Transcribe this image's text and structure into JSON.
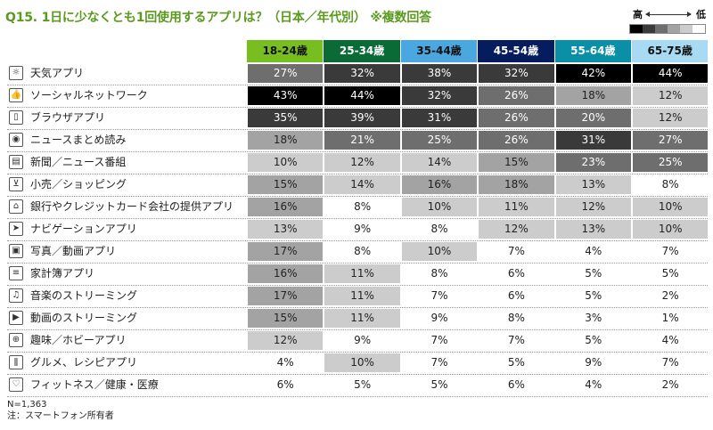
{
  "title": "Q15. 1日に少なくとも1回使用するアプリは？（日本／年代別） ※複数回答",
  "legend": {
    "high_label": "高",
    "low_label": "低",
    "scale_colors": [
      "#000000",
      "#3a3a3a",
      "#6e6e6e",
      "#a3a3a3",
      "#cccccc",
      "#ffffff"
    ]
  },
  "footnote": {
    "n": "N=1,363",
    "note": "注：スマートフォン所有者"
  },
  "chart_data": {
    "type": "table",
    "title": "Q15. 1日に少なくとも1回使用するアプリは？（日本／年代別） ※複数回答",
    "columns": [
      {
        "label": "18-24歳",
        "color": "#78be20"
      },
      {
        "label": "25-34歳",
        "color": "#0b6b36"
      },
      {
        "label": "35-44歳",
        "color": "#4aa7df"
      },
      {
        "label": "45-54歳",
        "color": "#051c5e"
      },
      {
        "label": "55-64歳",
        "color": "#0a8fa6"
      },
      {
        "label": "65-75歳",
        "color": "#a8daf3"
      }
    ],
    "rows": [
      {
        "label": "天気アプリ",
        "icon": "sun-icon",
        "values": [
          27,
          32,
          38,
          32,
          42,
          44
        ]
      },
      {
        "label": "ソーシャルネットワーク",
        "icon": "thumbs-up-icon",
        "values": [
          43,
          44,
          32,
          26,
          18,
          12
        ]
      },
      {
        "label": "ブラウザアプリ",
        "icon": "phone-icon",
        "values": [
          35,
          39,
          31,
          26,
          20,
          12
        ]
      },
      {
        "label": "ニュースまとめ読み",
        "icon": "broadcast-icon",
        "values": [
          18,
          21,
          25,
          26,
          31,
          27
        ]
      },
      {
        "label": "新聞／ニュース番組",
        "icon": "newspaper-icon",
        "values": [
          10,
          12,
          14,
          15,
          23,
          25
        ]
      },
      {
        "label": "小売／ショッピング",
        "icon": "cart-icon",
        "values": [
          15,
          14,
          16,
          18,
          13,
          8
        ]
      },
      {
        "label": "銀行やクレジットカード会社の提供アプリ",
        "icon": "bank-icon",
        "values": [
          16,
          8,
          10,
          11,
          12,
          10
        ]
      },
      {
        "label": "ナビゲーションアプリ",
        "icon": "navigation-arrow-icon",
        "values": [
          13,
          9,
          8,
          12,
          13,
          10
        ]
      },
      {
        "label": "写真／動画アプリ",
        "icon": "photo-icon",
        "values": [
          17,
          8,
          10,
          7,
          4,
          7
        ]
      },
      {
        "label": "家計簿アプリ",
        "icon": "document-icon",
        "values": [
          16,
          11,
          8,
          6,
          5,
          5
        ]
      },
      {
        "label": "音楽のストリーミング",
        "icon": "music-note-icon",
        "values": [
          17,
          11,
          7,
          6,
          5,
          2
        ]
      },
      {
        "label": "動画のストリーミング",
        "icon": "video-file-icon",
        "values": [
          15,
          11,
          9,
          8,
          3,
          1
        ]
      },
      {
        "label": "趣味／ホビーアプリ",
        "icon": "gamepad-icon",
        "values": [
          12,
          9,
          7,
          7,
          5,
          4
        ]
      },
      {
        "label": "グルメ、レシピアプリ",
        "icon": "cutlery-icon",
        "values": [
          4,
          10,
          7,
          5,
          9,
          7
        ]
      },
      {
        "label": "フィットネス／健康・医療",
        "icon": "heart-icon",
        "values": [
          6,
          5,
          5,
          6,
          4,
          2
        ]
      }
    ],
    "value_suffix": "%"
  }
}
